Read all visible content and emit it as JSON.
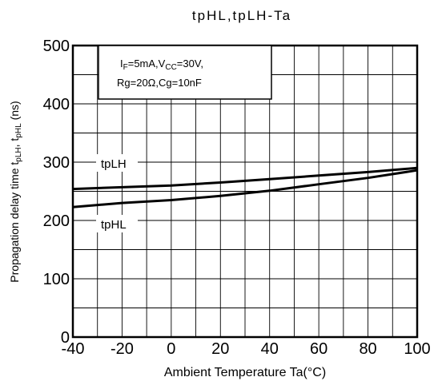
{
  "chart_data": {
    "type": "line",
    "title": "tpHL,tpLH-Ta",
    "xlabel": "Ambient Temperature Ta(°C)",
    "ylabel": {
      "prefix": "Propagation delay time   t",
      "sub1": "pLH",
      "mid": ", t",
      "sub2": "pHL",
      "suffix": "   (ns)"
    },
    "xlim": [
      -40,
      100
    ],
    "ylim": [
      0,
      500
    ],
    "x_ticks": [
      -40,
      -20,
      0,
      20,
      40,
      60,
      80,
      100
    ],
    "x_tick_labels": [
      "-40",
      "-20",
      "0",
      "20",
      "40",
      "60",
      "80",
      "100"
    ],
    "y_ticks": [
      0,
      100,
      200,
      300,
      400,
      500
    ],
    "y_tick_labels": [
      "0",
      "100",
      "200",
      "300",
      "400",
      "500"
    ],
    "grid": true,
    "conditions": {
      "line1": {
        "p1": "I",
        "s1": "F",
        "p2": "=5mA,V",
        "s2": "CC",
        "p3": "=30V,"
      },
      "line2": "Rg=20Ω,Cg=10nF"
    },
    "series": [
      {
        "name": "tpLH",
        "x": [
          -40,
          -20,
          0,
          20,
          40,
          60,
          80,
          100
        ],
        "values": [
          254,
          257,
          260,
          265,
          271,
          277,
          283,
          290
        ]
      },
      {
        "name": "tpHL",
        "x": [
          -40,
          -20,
          0,
          20,
          40,
          60,
          80,
          100
        ],
        "values": [
          223,
          230,
          235,
          242,
          251,
          262,
          273,
          286
        ]
      }
    ]
  }
}
